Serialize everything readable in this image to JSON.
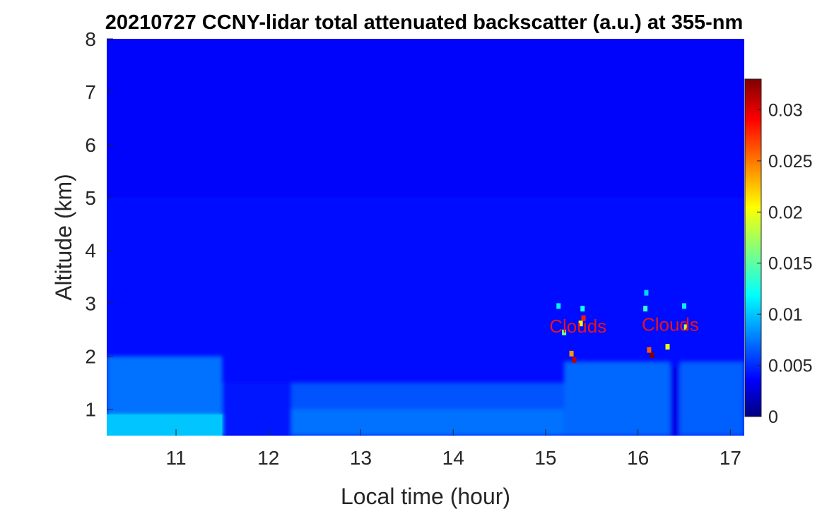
{
  "chart_data": {
    "type": "heatmap",
    "title": "20210727 CCNY-lidar total attenuated backscatter (a.u.) at 355-nm",
    "xlabel": "Local time (hour)",
    "ylabel": "Altitude (km)",
    "xlim": [
      10.25,
      17.15
    ],
    "ylim": [
      0.5,
      8
    ],
    "xticks": [
      11,
      12,
      13,
      14,
      15,
      16,
      17
    ],
    "yticks": [
      1,
      2,
      3,
      4,
      5,
      6,
      7,
      8
    ],
    "colorbar": {
      "colormap": "jet",
      "range": [
        0,
        0.033
      ],
      "ticks": [
        0,
        0.005,
        0.01,
        0.015,
        0.02,
        0.025,
        0.03
      ],
      "tick_labels": [
        "0",
        "0.005",
        "0.01",
        "0.015",
        "0.02",
        "0.025",
        "0.03"
      ]
    },
    "regions": [
      {
        "x": [
          10.25,
          11.5
        ],
        "y": [
          0.5,
          0.9
        ],
        "value": 0.0105
      },
      {
        "x": [
          10.25,
          11.5
        ],
        "y": [
          0.9,
          2.0
        ],
        "value": 0.0078
      },
      {
        "x": [
          11.5,
          12.25
        ],
        "y": [
          0.5,
          1.5
        ],
        "value": 0.0048
      },
      {
        "x": [
          12.25,
          15.2
        ],
        "y": [
          0.5,
          1.0
        ],
        "value": 0.0078
      },
      {
        "x": [
          12.25,
          15.2
        ],
        "y": [
          1.0,
          1.5
        ],
        "value": 0.0068
      },
      {
        "x": [
          15.2,
          16.35
        ],
        "y": [
          0.5,
          1.9
        ],
        "value": 0.0075
      },
      {
        "x": [
          16.35,
          16.45
        ],
        "y": [
          0.5,
          1.8
        ],
        "value": 0.0035
      },
      {
        "x": [
          16.45,
          17.15
        ],
        "y": [
          0.5,
          1.9
        ],
        "value": 0.0072
      }
    ],
    "background_value": 0.0045,
    "hotspots": [
      {
        "x": 15.31,
        "y": 1.93,
        "value": 0.031
      },
      {
        "x": 15.28,
        "y": 2.05,
        "value": 0.024
      },
      {
        "x": 15.41,
        "y": 2.72,
        "value": 0.028
      },
      {
        "x": 15.38,
        "y": 2.62,
        "value": 0.02
      },
      {
        "x": 15.4,
        "y": 2.9,
        "value": 0.013
      },
      {
        "x": 15.14,
        "y": 2.95,
        "value": 0.012
      },
      {
        "x": 15.2,
        "y": 2.45,
        "value": 0.016
      },
      {
        "x": 16.15,
        "y": 2.02,
        "value": 0.033
      },
      {
        "x": 16.12,
        "y": 2.12,
        "value": 0.026
      },
      {
        "x": 16.08,
        "y": 2.9,
        "value": 0.014
      },
      {
        "x": 16.09,
        "y": 3.2,
        "value": 0.011
      },
      {
        "x": 16.32,
        "y": 2.18,
        "value": 0.02
      },
      {
        "x": 16.52,
        "y": 2.55,
        "value": 0.018
      },
      {
        "x": 16.5,
        "y": 2.95,
        "value": 0.012
      }
    ],
    "annotations": [
      {
        "text": "Clouds",
        "x": 15.35,
        "y": 2.45,
        "color": "#e6141e"
      },
      {
        "text": "Clouds",
        "x": 16.35,
        "y": 2.48,
        "color": "#e6141e"
      }
    ]
  }
}
